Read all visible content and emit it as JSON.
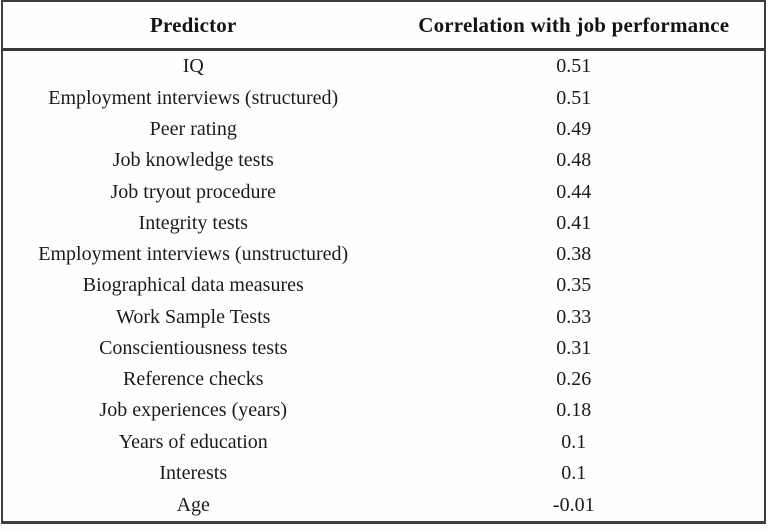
{
  "colors": {
    "background": "#fefefe",
    "border": "#3e3e3e",
    "text": "#1b1b1b"
  },
  "chart_data": {
    "type": "table",
    "columns": [
      "Predictor",
      "Correlation with job performance"
    ],
    "rows": [
      [
        "IQ",
        "0.51"
      ],
      [
        "Employment interviews (structured)",
        "0.51"
      ],
      [
        "Peer rating",
        "0.49"
      ],
      [
        "Job knowledge tests",
        "0.48"
      ],
      [
        "Job tryout procedure",
        "0.44"
      ],
      [
        "Integrity tests",
        "0.41"
      ],
      [
        "Employment interviews (unstructured)",
        "0.38"
      ],
      [
        "Biographical data measures",
        "0.35"
      ],
      [
        "Work Sample Tests",
        "0.33"
      ],
      [
        "Conscientiousness tests",
        "0.31"
      ],
      [
        "Reference checks",
        "0.26"
      ],
      [
        "Job experiences (years)",
        "0.18"
      ],
      [
        "Years of education",
        "0.1"
      ],
      [
        "Interests",
        "0.1"
      ],
      [
        "Age",
        "-0.01"
      ]
    ],
    "values": [
      0.51,
      0.51,
      0.49,
      0.48,
      0.44,
      0.41,
      0.38,
      0.35,
      0.33,
      0.31,
      0.26,
      0.18,
      0.1,
      0.1,
      -0.01
    ],
    "title": "",
    "legend": "none",
    "grid": "outer-frame-and-header-rule-only"
  }
}
